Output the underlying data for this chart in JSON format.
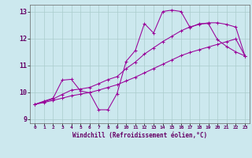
{
  "xlabel": "Windchill (Refroidissement éolien,°C)",
  "bg_color": "#cce8ee",
  "line_color": "#990099",
  "grid_color": "#aacccc",
  "xlim": [
    -0.5,
    23.5
  ],
  "ylim": [
    8.85,
    13.25
  ],
  "xticks": [
    0,
    1,
    2,
    3,
    4,
    5,
    6,
    7,
    8,
    9,
    10,
    11,
    12,
    13,
    14,
    15,
    16,
    17,
    18,
    19,
    20,
    21,
    22,
    23
  ],
  "yticks": [
    9,
    10,
    11,
    12,
    13
  ],
  "line1_x": [
    0,
    1,
    2,
    3,
    4,
    5,
    6,
    7,
    8,
    9,
    10,
    11,
    12,
    13,
    14,
    15,
    16,
    17,
    18,
    19,
    20,
    21,
    22,
    23
  ],
  "line1_y": [
    9.55,
    9.67,
    9.78,
    10.45,
    10.48,
    10.05,
    9.98,
    9.35,
    9.35,
    9.95,
    11.15,
    11.55,
    12.55,
    12.2,
    13.0,
    13.05,
    13.0,
    12.4,
    12.55,
    12.55,
    11.95,
    11.7,
    11.5,
    11.35
  ],
  "line2_x": [
    0,
    1,
    2,
    3,
    4,
    5,
    6,
    7,
    8,
    9,
    10,
    11,
    12,
    13,
    14,
    15,
    16,
    17,
    18,
    19,
    20,
    21,
    22,
    23
  ],
  "line2_y": [
    9.55,
    9.62,
    9.7,
    9.78,
    9.87,
    9.93,
    9.99,
    10.08,
    10.18,
    10.28,
    10.42,
    10.56,
    10.72,
    10.88,
    11.04,
    11.2,
    11.36,
    11.48,
    11.58,
    11.68,
    11.78,
    11.88,
    11.98,
    11.35
  ],
  "line3_x": [
    0,
    1,
    2,
    3,
    4,
    5,
    6,
    7,
    8,
    9,
    10,
    11,
    12,
    13,
    14,
    15,
    16,
    17,
    18,
    19,
    20,
    21,
    22,
    23
  ],
  "line3_y": [
    9.55,
    9.65,
    9.75,
    9.92,
    10.08,
    10.12,
    10.18,
    10.32,
    10.47,
    10.58,
    10.88,
    11.12,
    11.42,
    11.65,
    11.88,
    12.08,
    12.28,
    12.43,
    12.52,
    12.58,
    12.58,
    12.52,
    12.42,
    11.35
  ]
}
